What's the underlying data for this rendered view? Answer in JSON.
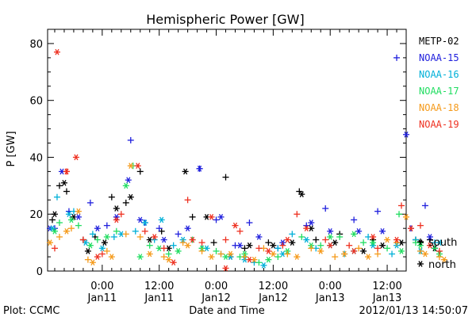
{
  "chart_data": {
    "type": "scatter",
    "title": "Hemispheric Power [GW]",
    "xlabel": "Date and Time",
    "ylabel": "P [GW]",
    "ylim": [
      0,
      85
    ],
    "xlim": [
      "2012-01-10 12:30",
      "2012-01-13 16:00"
    ],
    "yticks": [
      0,
      20,
      40,
      60,
      80
    ],
    "xticks": [
      {
        "time": "2012-01-11 00:00",
        "line1": "0:00",
        "line2": "Jan11"
      },
      {
        "time": "2012-01-11 12:00",
        "line1": "12:00",
        "line2": "Jan11"
      },
      {
        "time": "2012-01-12 00:00",
        "line1": "0:00",
        "line2": "Jan12"
      },
      {
        "time": "2012-01-12 12:00",
        "line1": "12:00",
        "line2": "Jan12"
      },
      {
        "time": "2012-01-13 00:00",
        "line1": "0:00",
        "line2": "Jan13"
      },
      {
        "time": "2012-01-13 12:00",
        "line1": "12:00",
        "line2": "Jan13"
      }
    ],
    "legend_position": "right",
    "marker_legend": [
      {
        "symbol": "+",
        "label": "south"
      },
      {
        "symbol": "*",
        "label": "north"
      }
    ],
    "series": [
      {
        "name": "METP-02",
        "color": "#000000",
        "south": [
          [
            -10.5,
            18
          ],
          [
            -9,
            30
          ],
          [
            -7.5,
            28
          ],
          [
            -4,
            11
          ],
          [
            -1.5,
            12
          ],
          [
            2,
            26
          ],
          [
            5,
            24
          ],
          [
            8,
            35
          ],
          [
            12.5,
            14
          ],
          [
            19,
            19
          ],
          [
            23.5,
            10
          ],
          [
            26,
            33
          ],
          [
            30,
            8
          ],
          [
            35,
            10
          ],
          [
            41.5,
            28
          ],
          [
            45,
            11
          ],
          [
            50,
            13
          ],
          [
            57,
            11
          ],
          [
            66,
            11
          ],
          [
            69,
            11
          ]
        ],
        "north": [
          [
            -10,
            20
          ],
          [
            -8,
            31
          ],
          [
            -6,
            19
          ],
          [
            -3,
            7
          ],
          [
            0.5,
            10
          ],
          [
            3,
            22
          ],
          [
            6,
            26
          ],
          [
            10,
            11
          ],
          [
            14,
            8
          ],
          [
            17.5,
            35
          ],
          [
            22,
            19
          ],
          [
            27,
            5
          ],
          [
            31,
            9
          ],
          [
            36,
            9
          ],
          [
            40,
            10
          ],
          [
            42,
            27
          ],
          [
            44,
            15
          ],
          [
            49,
            10
          ],
          [
            55,
            7
          ],
          [
            59,
            9
          ],
          [
            63,
            10
          ],
          [
            67,
            10
          ],
          [
            70,
            8
          ]
        ]
      },
      {
        "name": "NOAA-15",
        "color": "#2020dd",
        "south": [
          [
            -10,
            15
          ],
          [
            -7,
            21
          ],
          [
            -2.5,
            24
          ],
          [
            1,
            16
          ],
          [
            6,
            46
          ],
          [
            9,
            17
          ],
          [
            12,
            15
          ],
          [
            16,
            13
          ],
          [
            20.5,
            36
          ],
          [
            24,
            18
          ],
          [
            28,
            9
          ],
          [
            31,
            17
          ],
          [
            37,
            8
          ],
          [
            43,
            16
          ],
          [
            47,
            22
          ],
          [
            53,
            18
          ],
          [
            58,
            21
          ],
          [
            62,
            75
          ],
          [
            65,
            15
          ],
          [
            68,
            23
          ]
        ],
        "north": [
          [
            -11,
            15
          ],
          [
            -8.5,
            35
          ],
          [
            -5,
            19
          ],
          [
            -1,
            15
          ],
          [
            3,
            19
          ],
          [
            5.5,
            32
          ],
          [
            8,
            18
          ],
          [
            13,
            11
          ],
          [
            18,
            15
          ],
          [
            20.5,
            36
          ],
          [
            25,
            19
          ],
          [
            29,
            9
          ],
          [
            33,
            12
          ],
          [
            38,
            10
          ],
          [
            44,
            17
          ],
          [
            48,
            14
          ],
          [
            54,
            14
          ],
          [
            59,
            14
          ],
          [
            64,
            48
          ],
          [
            69,
            12
          ]
        ]
      },
      {
        "name": "NOAA-16",
        "color": "#00b0d8",
        "south": [
          [
            -9.5,
            26
          ],
          [
            -6,
            21
          ],
          [
            -2,
            13
          ],
          [
            2.5,
            12
          ],
          [
            7,
            14
          ],
          [
            11,
            11
          ],
          [
            15,
            9
          ],
          [
            21,
            8
          ],
          [
            25,
            6
          ],
          [
            32,
            3
          ],
          [
            37,
            8
          ],
          [
            40,
            13
          ],
          [
            45,
            8
          ],
          [
            51,
            6
          ],
          [
            56,
            12
          ],
          [
            61,
            6
          ],
          [
            66,
            11
          ],
          [
            70,
            10
          ]
        ],
        "north": [
          [
            -10.5,
            15
          ],
          [
            -7,
            20
          ],
          [
            -3.5,
            10
          ],
          [
            0,
            8
          ],
          [
            4,
            13
          ],
          [
            9,
            17
          ],
          [
            12.5,
            18
          ],
          [
            17,
            11
          ],
          [
            22,
            8
          ],
          [
            27,
            5
          ],
          [
            30,
            4
          ],
          [
            34,
            2
          ],
          [
            38,
            6
          ],
          [
            43,
            11
          ],
          [
            48,
            9
          ],
          [
            53,
            7
          ],
          [
            57,
            9
          ],
          [
            62,
            9
          ],
          [
            67,
            7
          ],
          [
            71,
            10
          ]
        ]
      },
      {
        "name": "NOAA-17",
        "color": "#20dd60",
        "south": [
          [
            -9,
            17
          ],
          [
            -5,
            16
          ],
          [
            -1,
            11
          ],
          [
            3,
            14
          ],
          [
            6.5,
            37
          ],
          [
            10,
            9
          ],
          [
            14,
            6
          ],
          [
            19,
            11
          ],
          [
            24,
            7
          ],
          [
            29,
            5
          ],
          [
            33,
            3
          ],
          [
            37,
            5
          ],
          [
            42,
            12
          ],
          [
            46,
            9
          ],
          [
            50,
            12
          ],
          [
            55,
            10
          ],
          [
            60,
            8
          ],
          [
            62.5,
            20
          ],
          [
            66,
            10
          ],
          [
            70,
            8
          ]
        ],
        "north": [
          [
            -10,
            14
          ],
          [
            -6.5,
            18
          ],
          [
            -2.5,
            9
          ],
          [
            1,
            12
          ],
          [
            5,
            30
          ],
          [
            8,
            5
          ],
          [
            12,
            8
          ],
          [
            16,
            7
          ],
          [
            21,
            8
          ],
          [
            26,
            5
          ],
          [
            30,
            6
          ],
          [
            35,
            4
          ],
          [
            39,
            7
          ],
          [
            44,
            9
          ],
          [
            48,
            12
          ],
          [
            53,
            13
          ],
          [
            57,
            10
          ],
          [
            63,
            7
          ],
          [
            67,
            9
          ],
          [
            71,
            6
          ]
        ]
      },
      {
        "name": "NOAA-18",
        "color": "#f59a1a",
        "south": [
          [
            -9,
            12
          ],
          [
            -6.5,
            15
          ],
          [
            -3,
            4
          ],
          [
            1,
            7
          ],
          [
            5,
            13
          ],
          [
            8,
            12
          ],
          [
            13,
            5
          ],
          [
            17,
            10
          ],
          [
            21,
            7
          ],
          [
            25,
            6
          ],
          [
            30,
            5
          ],
          [
            34,
            8
          ],
          [
            39,
            6
          ],
          [
            44,
            8
          ],
          [
            49,
            5
          ],
          [
            54,
            8
          ],
          [
            58,
            6
          ],
          [
            62,
            10
          ],
          [
            67,
            7
          ],
          [
            71,
            5
          ]
        ],
        "north": [
          [
            -11,
            10
          ],
          [
            -7.5,
            14
          ],
          [
            -5,
            21
          ],
          [
            -2,
            3
          ],
          [
            2,
            5
          ],
          [
            6,
            37
          ],
          [
            10,
            6
          ],
          [
            14,
            4
          ],
          [
            18,
            9
          ],
          [
            23,
            5
          ],
          [
            27,
            6
          ],
          [
            32,
            4
          ],
          [
            36,
            6
          ],
          [
            41,
            5
          ],
          [
            46,
            7
          ],
          [
            51,
            6
          ],
          [
            56,
            5
          ],
          [
            60,
            11
          ],
          [
            64,
            19
          ],
          [
            68,
            6
          ],
          [
            72,
            4
          ]
        ]
      },
      {
        "name": "NOAA-19",
        "color": "#ee3020",
        "south": [
          [
            -10,
            8
          ],
          [
            -7.5,
            35
          ],
          [
            -4,
            11
          ],
          [
            0,
            6
          ],
          [
            4,
            20
          ],
          [
            9,
            14
          ],
          [
            13,
            8
          ],
          [
            18,
            25
          ],
          [
            21,
            10
          ],
          [
            26,
            11
          ],
          [
            29,
            14
          ],
          [
            33,
            8
          ],
          [
            38,
            9
          ],
          [
            41,
            20
          ],
          [
            47,
            11
          ],
          [
            52,
            9
          ],
          [
            58,
            8
          ],
          [
            63,
            23
          ],
          [
            67,
            16
          ],
          [
            71,
            7
          ]
        ],
        "north": [
          [
            -9.5,
            77
          ],
          [
            -7.5,
            35
          ],
          [
            -5.5,
            40
          ],
          [
            -1,
            5
          ],
          [
            3,
            18
          ],
          [
            7.5,
            37
          ],
          [
            11,
            12
          ],
          [
            15,
            3
          ],
          [
            19,
            11
          ],
          [
            23,
            19
          ],
          [
            26,
            1
          ],
          [
            28,
            16
          ],
          [
            31,
            4
          ],
          [
            35,
            7
          ],
          [
            39,
            11
          ],
          [
            43,
            15
          ],
          [
            48,
            9
          ],
          [
            53,
            7
          ],
          [
            57,
            12
          ],
          [
            62,
            11
          ],
          [
            65,
            15
          ],
          [
            69,
            9
          ]
        ]
      }
    ]
  },
  "footer": {
    "left": "Plot: CCMC",
    "right": "2012/01/13 14:50:07"
  }
}
